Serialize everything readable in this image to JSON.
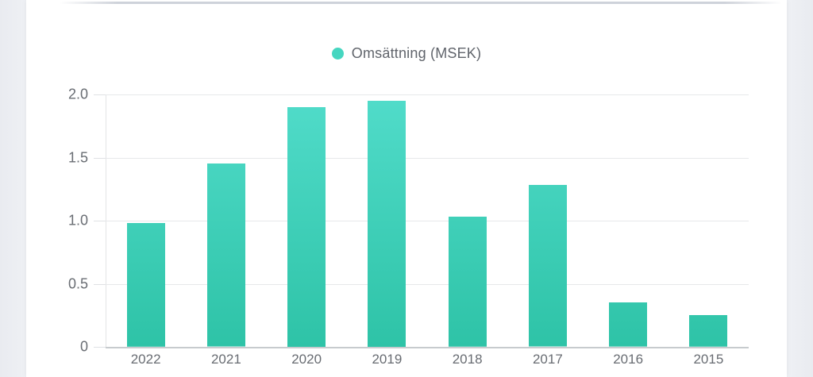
{
  "page": {
    "background_color": "#edeff3",
    "card_background_color": "#ffffff"
  },
  "legend": {
    "label": "Omsättning (MSEK)",
    "dot_color": "#45d6c0"
  },
  "chart_data": {
    "type": "bar",
    "title": "",
    "xlabel": "",
    "ylabel": "",
    "categories": [
      "2022",
      "2021",
      "2020",
      "2019",
      "2018",
      "2017",
      "2016",
      "2015"
    ],
    "series": [
      {
        "name": "Omsättning (MSEK)",
        "values": [
          0.98,
          1.45,
          1.9,
          1.95,
          1.03,
          1.28,
          0.35,
          0.25
        ]
      }
    ],
    "ylim": [
      0,
      2.0
    ],
    "ytick_labels": [
      "2.0",
      "1.5",
      "1.0",
      "0.5",
      "0"
    ],
    "ytick_values": [
      2.0,
      1.5,
      1.0,
      0.5,
      0
    ],
    "grid": "horizontal gridlines on",
    "legend_position": "top-center",
    "bar_color_top": "#51dcca",
    "bar_color_bottom": "#2ec3a7"
  }
}
